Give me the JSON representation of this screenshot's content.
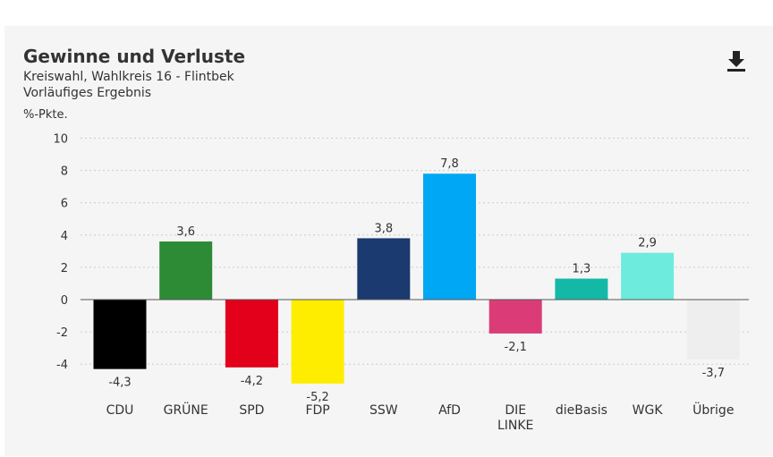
{
  "header": {
    "title": "Gewinne und Verluste",
    "subtitle": "Kreiswahl, Wahlkreis 16 - Flintbek",
    "note": "Vorläufiges Ergebnis"
  },
  "toolbar": {
    "download_icon": "download-icon"
  },
  "chart_data": {
    "type": "bar",
    "ylabel": "%-Pkte.",
    "ylim": [
      -4,
      10
    ],
    "yticks": [
      10,
      8,
      6,
      4,
      2,
      0,
      -2,
      -4
    ],
    "grid": true,
    "categories": [
      "CDU",
      "GRÜNE",
      "SPD",
      "FDP",
      "SSW",
      "AfD",
      "DIE LINKE",
      "dieBasis",
      "WGK",
      "Übrige"
    ],
    "values": [
      -4.3,
      3.6,
      -4.2,
      -5.2,
      3.8,
      7.8,
      -2.1,
      1.3,
      2.9,
      -3.7
    ],
    "value_labels": [
      "-4,3",
      "3,6",
      "-4,2",
      "-5,2",
      "3,8",
      "7,8",
      "-2,1",
      "1,3",
      "2,9",
      "-3,7"
    ],
    "colors": [
      "#000000",
      "#2e8b35",
      "#e2001a",
      "#ffed00",
      "#1a3a70",
      "#00a7f5",
      "#db3c78",
      "#13b9a6",
      "#6decde",
      "#eeeeee"
    ]
  }
}
